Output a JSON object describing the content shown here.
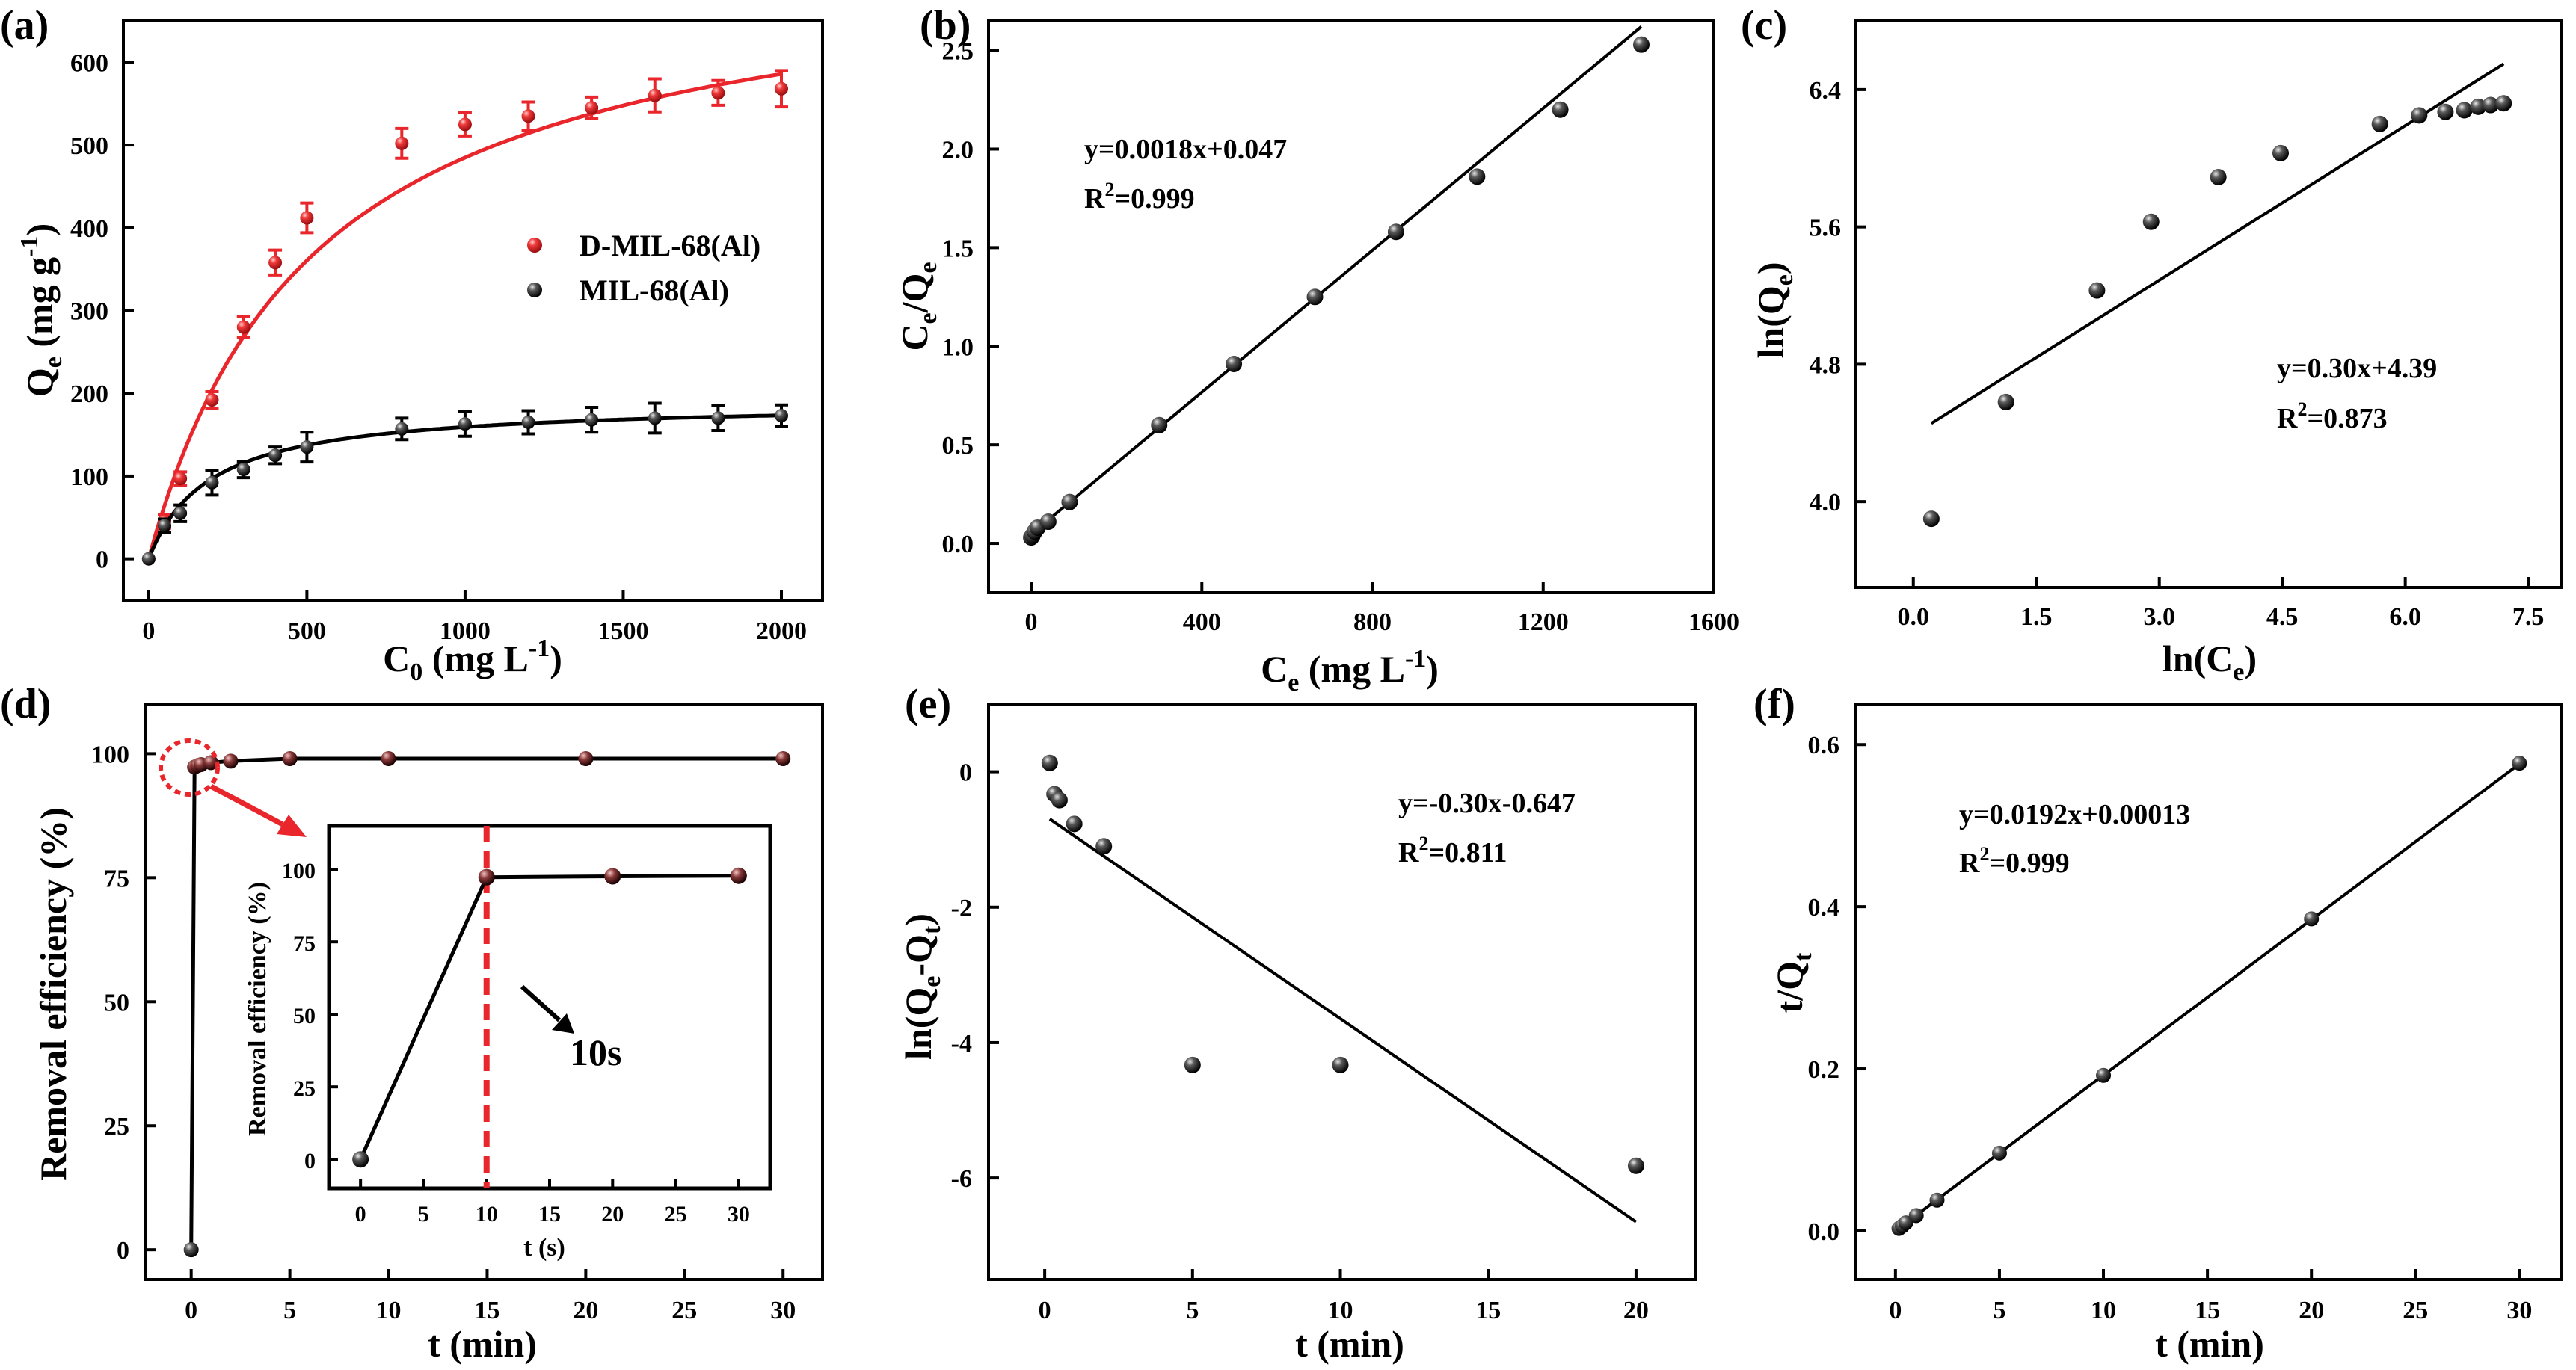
{
  "figure": {
    "panels": [
      {
        "id": "a",
        "label": "(a)"
      },
      {
        "id": "b",
        "label": "(b)"
      },
      {
        "id": "c",
        "label": "(c)"
      },
      {
        "id": "d",
        "label": "(d)"
      },
      {
        "id": "e",
        "label": "(e)"
      },
      {
        "id": "f",
        "label": "(f)"
      }
    ]
  },
  "colors": {
    "red": "#e8262b",
    "black": "#000000",
    "marker": "#2b2b2b"
  },
  "chart_data": [
    {
      "panel": "a",
      "type": "scatter",
      "xlabel": "C0 (mg L-1)",
      "ylabel": "Qe (mg g-1)",
      "xlim": [
        -80,
        2130
      ],
      "ylim": [
        -50,
        650
      ],
      "xticks": [
        0,
        500,
        1000,
        1500,
        2000
      ],
      "yticks": [
        0,
        100,
        200,
        300,
        400,
        500,
        600
      ],
      "legend": {
        "position": "center-right",
        "entries": [
          "D-MIL-68(Al)",
          "MIL-68(Al)"
        ]
      },
      "series": [
        {
          "name": "D-MIL-68(Al)",
          "color": "#e8262b",
          "x": [
            0,
            50,
            100,
            200,
            300,
            400,
            500,
            800,
            1000,
            1200,
            1400,
            1600,
            1800,
            2000
          ],
          "y": [
            0,
            45,
            97,
            192,
            280,
            358,
            412,
            502,
            525,
            535,
            545,
            560,
            563,
            568
          ],
          "err": [
            0,
            8,
            8,
            10,
            13,
            15,
            18,
            18,
            14,
            17,
            13,
            20,
            15,
            22
          ],
          "fit": "langmuir",
          "fit_qmax": 740,
          "fit_k": 0.0019
        },
        {
          "name": "MIL-68(Al)",
          "color": "#000000",
          "x": [
            0,
            50,
            100,
            200,
            300,
            400,
            500,
            800,
            1000,
            1200,
            1400,
            1600,
            1800,
            2000
          ],
          "y": [
            0,
            40,
            55,
            92,
            108,
            125,
            135,
            157,
            163,
            165,
            168,
            170,
            170,
            173
          ],
          "err": [
            0,
            8,
            10,
            15,
            10,
            10,
            18,
            13,
            15,
            14,
            15,
            18,
            15,
            13
          ],
          "fit": "langmuir",
          "fit_qmax": 190,
          "fit_k": 0.0052
        }
      ]
    },
    {
      "panel": "b",
      "type": "scatter",
      "xlabel": "Ce (mg L-1)",
      "ylabel": "Ce/Qe",
      "xlim": [
        -100,
        1600
      ],
      "ylim": [
        -0.25,
        2.65
      ],
      "xticks": [
        0,
        400,
        800,
        1200,
        1600
      ],
      "yticks": [
        0.0,
        0.5,
        1.0,
        1.5,
        2.0,
        2.5
      ],
      "equation": "y=0.0018x+0.047",
      "r2": "R2=0.999",
      "fit": {
        "slope": 0.0018,
        "intercept": 0.047,
        "x_range": [
          0,
          1430
        ]
      },
      "points": {
        "x": [
          0,
          3,
          8,
          15,
          40,
          90,
          300,
          475,
          665,
          855,
          1045,
          1240,
          1430
        ],
        "y": [
          0.03,
          0.04,
          0.06,
          0.08,
          0.11,
          0.21,
          0.6,
          0.91,
          1.25,
          1.58,
          1.86,
          2.2,
          2.53
        ]
      }
    },
    {
      "panel": "c",
      "type": "scatter",
      "xlabel": "ln(Ce)",
      "ylabel": "ln(Qe)",
      "xlim": [
        -0.7,
        7.9
      ],
      "ylim": [
        3.5,
        6.8
      ],
      "xticks": [
        0.0,
        1.5,
        3.0,
        4.5,
        6.0,
        7.5
      ],
      "yticks": [
        4.0,
        4.8,
        5.6,
        6.4
      ],
      "equation": "y=0.30x+4.39",
      "r2": "R2=0.873",
      "fit": {
        "slope": 0.3,
        "intercept": 4.39,
        "x_range": [
          0.22,
          7.2
        ]
      },
      "points": {
        "x": [
          0.22,
          1.13,
          2.24,
          2.9,
          3.72,
          4.48,
          5.69,
          6.17,
          6.49,
          6.72,
          6.89,
          7.04,
          7.2
        ],
        "y": [
          3.9,
          4.58,
          5.23,
          5.63,
          5.89,
          6.03,
          6.2,
          6.25,
          6.27,
          6.28,
          6.3,
          6.31,
          6.32
        ]
      }
    },
    {
      "panel": "d",
      "type": "line",
      "xlabel": "t (min)",
      "ylabel": "Removal efficiency (%)",
      "xlim": [
        -2.3,
        32
      ],
      "ylim": [
        -6,
        110
      ],
      "xticks": [
        0,
        5,
        10,
        15,
        20,
        25,
        30
      ],
      "yticks": [
        0,
        25,
        50,
        75,
        100
      ],
      "points": {
        "x": [
          0,
          0.17,
          0.33,
          0.5,
          1,
          2,
          5,
          10,
          20,
          30
        ],
        "y": [
          0,
          97.3,
          97.6,
          97.8,
          98.2,
          98.5,
          99,
          99,
          99,
          99
        ]
      },
      "inset": {
        "xlabel": "t (s)",
        "ylabel": "Removal efficiency (%)",
        "xlim": [
          -2.5,
          32.5
        ],
        "ylim": [
          -10,
          115
        ],
        "xticks": [
          0,
          5,
          10,
          15,
          20,
          25,
          30
        ],
        "yticks": [
          0,
          25,
          50,
          75,
          100
        ],
        "points": {
          "x": [
            0,
            10,
            20,
            30
          ],
          "y": [
            0,
            97.3,
            97.6,
            97.8
          ]
        },
        "marker_line_x": 10,
        "annotation": "10s"
      }
    },
    {
      "panel": "e",
      "type": "scatter",
      "xlabel": "t (min)",
      "ylabel": "ln(Qe-Qt)",
      "xlim": [
        -1.9,
        22
      ],
      "ylim": [
        -7.5,
        1.0
      ],
      "xticks": [
        0,
        5,
        10,
        15,
        20
      ],
      "yticks": [
        0,
        -2,
        -4,
        -6
      ],
      "equation": "y=-0.30x-0.647",
      "r2": "R2=0.811",
      "fit": {
        "slope": -0.3,
        "intercept": -0.647,
        "x_range": [
          0.17,
          20
        ]
      },
      "points": {
        "x": [
          0.17,
          0.33,
          0.5,
          1,
          2,
          5,
          10,
          20
        ],
        "y": [
          0.13,
          -0.33,
          -0.42,
          -0.77,
          -1.1,
          -4.33,
          -4.33,
          -5.82
        ]
      }
    },
    {
      "panel": "f",
      "type": "scatter",
      "xlabel": "t (min)",
      "ylabel": "t/Qt",
      "xlim": [
        -1.9,
        32
      ],
      "ylim": [
        -0.06,
        0.65
      ],
      "xticks": [
        0,
        5,
        10,
        15,
        20,
        25,
        30
      ],
      "yticks": [
        0.0,
        0.2,
        0.4,
        0.6
      ],
      "equation": "y=0.0192x+0.00013",
      "r2": "R2=0.999",
      "fit": {
        "slope": 0.0192,
        "intercept": 0.00013,
        "x_range": [
          0.17,
          30
        ]
      },
      "points": {
        "x": [
          0.17,
          0.33,
          0.5,
          1,
          2,
          5,
          10,
          20,
          30
        ],
        "y": [
          0.003,
          0.006,
          0.01,
          0.019,
          0.038,
          0.096,
          0.192,
          0.385,
          0.577
        ]
      }
    }
  ]
}
